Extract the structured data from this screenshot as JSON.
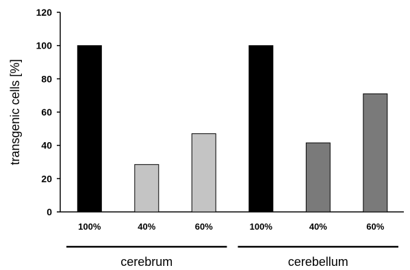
{
  "chart_data": {
    "type": "bar",
    "title": "",
    "xlabel": "",
    "ylabel": "transgenic cells [%]",
    "ylim": [
      0,
      120
    ],
    "yticks": [
      0,
      20,
      40,
      60,
      80,
      100,
      120
    ],
    "grid": false,
    "legend": "none",
    "categories": [
      "100%",
      "40%",
      "60%",
      "100%",
      "40%",
      "60%"
    ],
    "values": [
      100,
      28.5,
      47,
      100,
      41.5,
      71
    ],
    "groups": [
      {
        "label": "cerebrum",
        "members": [
          0,
          1,
          2
        ]
      },
      {
        "label": "cerebellum",
        "members": [
          3,
          4,
          5
        ]
      }
    ],
    "bar_colors": [
      "#000000",
      "#c4c4c4",
      "#c4c4c4",
      "#000000",
      "#7a7a7a",
      "#7a7a7a"
    ]
  }
}
